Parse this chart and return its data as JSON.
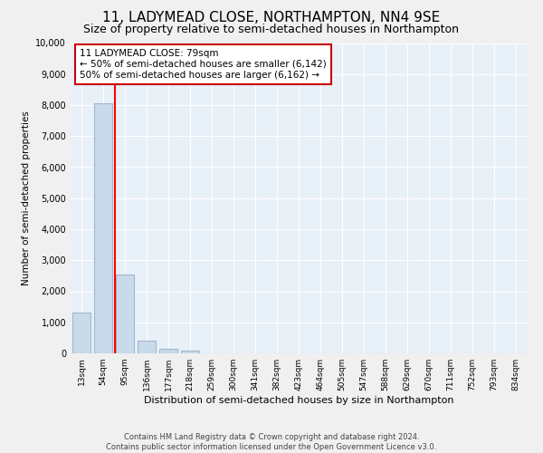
{
  "title": "11, LADYMEAD CLOSE, NORTHAMPTON, NN4 9SE",
  "subtitle": "Size of property relative to semi-detached houses in Northampton",
  "xlabel": "Distribution of semi-detached houses by size in Northampton",
  "ylabel": "Number of semi-detached properties",
  "bar_labels": [
    "13sqm",
    "54sqm",
    "95sqm",
    "136sqm",
    "177sqm",
    "218sqm",
    "259sqm",
    "300sqm",
    "341sqm",
    "382sqm",
    "423sqm",
    "464sqm",
    "505sqm",
    "547sqm",
    "588sqm",
    "629sqm",
    "670sqm",
    "711sqm",
    "752sqm",
    "793sqm",
    "834sqm"
  ],
  "bar_values": [
    1300,
    8050,
    2550,
    400,
    160,
    100,
    0,
    0,
    0,
    0,
    0,
    0,
    0,
    0,
    0,
    0,
    0,
    0,
    0,
    0,
    0
  ],
  "bar_color": "#c9daea",
  "bar_edge_color": "#a0b8cc",
  "property_line_x": 1.55,
  "ylim": [
    0,
    10000
  ],
  "yticks": [
    0,
    1000,
    2000,
    3000,
    4000,
    5000,
    6000,
    7000,
    8000,
    9000,
    10000
  ],
  "annotation_title": "11 LADYMEAD CLOSE: 79sqm",
  "annotation_line1": "← 50% of semi-detached houses are smaller (6,142)",
  "annotation_line2": "50% of semi-detached houses are larger (6,162) →",
  "annotation_box_color": "#ffffff",
  "annotation_box_edge": "#cc0000",
  "footer_line1": "Contains HM Land Registry data © Crown copyright and database right 2024.",
  "footer_line2": "Contains public sector information licensed under the Open Government Licence v3.0.",
  "bg_color": "#e8f0f8",
  "grid_color": "#ffffff",
  "fig_bg_color": "#f0f0f0",
  "title_fontsize": 11,
  "subtitle_fontsize": 9
}
